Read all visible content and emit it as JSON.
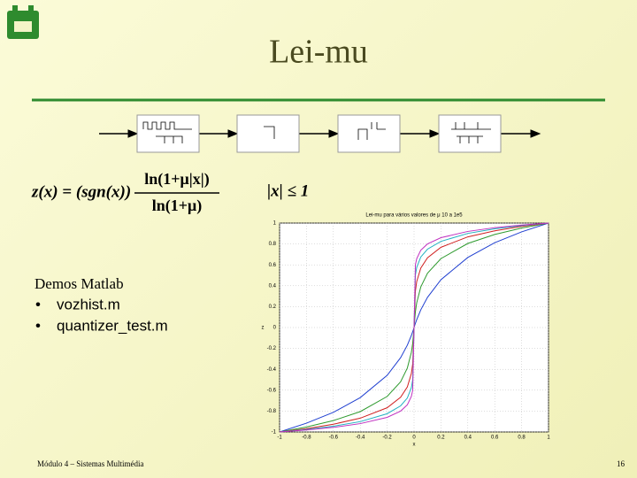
{
  "header": {
    "title": "Lei-mu"
  },
  "formula": {
    "lhs": "z(x) = (sgn(x))",
    "numerator": "ln(1+μ|x|)",
    "denominator": "ln(1+μ)",
    "condition": "|x| ≤ 1"
  },
  "demos": {
    "title": "Demos Matlab",
    "items": [
      "vozhist.m",
      "quantizer_test.m"
    ]
  },
  "footer": {
    "text": "Módulo 4 – Sistemas Multimédia",
    "page": 16
  },
  "chart_data": {
    "type": "line",
    "title": "Lei-mu para vários valores de μ 10 a 1e5",
    "x_label": "x",
    "y_label": "z",
    "x": [
      -1,
      -0.8,
      -0.6,
      -0.4,
      -0.2,
      -0.1,
      -0.05,
      -0.02,
      -0.01,
      0,
      0.01,
      0.02,
      0.05,
      0.1,
      0.2,
      0.4,
      0.6,
      0.8,
      1
    ],
    "series": [
      {
        "color": "#1f3fd0",
        "values": [
          -1,
          -0.916,
          -0.812,
          -0.671,
          -0.458,
          -0.289,
          -0.169,
          -0.076,
          -0.04,
          0,
          0.04,
          0.076,
          0.169,
          0.289,
          0.458,
          0.671,
          0.812,
          0.916,
          1
        ]
      },
      {
        "color": "#2e9a2e",
        "values": [
          -1,
          -0.952,
          -0.891,
          -0.805,
          -0.66,
          -0.52,
          -0.388,
          -0.238,
          -0.15,
          0,
          0.15,
          0.238,
          0.388,
          0.52,
          0.66,
          0.805,
          0.891,
          0.952,
          1
        ]
      },
      {
        "color": "#d02020",
        "values": [
          -1,
          -0.968,
          -0.926,
          -0.868,
          -0.768,
          -0.668,
          -0.569,
          -0.441,
          -0.347,
          0,
          0.347,
          0.441,
          0.569,
          0.668,
          0.768,
          0.868,
          0.926,
          0.968,
          1
        ]
      },
      {
        "color": "#20b0c0",
        "values": [
          -1,
          -0.976,
          -0.945,
          -0.901,
          -0.825,
          -0.75,
          -0.675,
          -0.576,
          -0.501,
          0,
          0.501,
          0.576,
          0.675,
          0.75,
          0.825,
          0.901,
          0.945,
          0.976,
          1
        ]
      },
      {
        "color": "#c030c0",
        "values": [
          -1,
          -0.981,
          -0.956,
          -0.92,
          -0.86,
          -0.8,
          -0.74,
          -0.66,
          -0.6,
          0,
          0.6,
          0.66,
          0.74,
          0.8,
          0.86,
          0.92,
          0.956,
          0.981,
          1
        ]
      }
    ],
    "xlim": [
      -1,
      1
    ],
    "ylim": [
      -1,
      1
    ],
    "xticks": [
      -1,
      -0.8,
      -0.6,
      -0.4,
      -0.2,
      0,
      0.2,
      0.4,
      0.6,
      0.8,
      1
    ],
    "yticks": [
      -1,
      -0.8,
      -0.6,
      -0.4,
      -0.2,
      0,
      0.2,
      0.4,
      0.6,
      0.8,
      1
    ],
    "grid": true
  }
}
